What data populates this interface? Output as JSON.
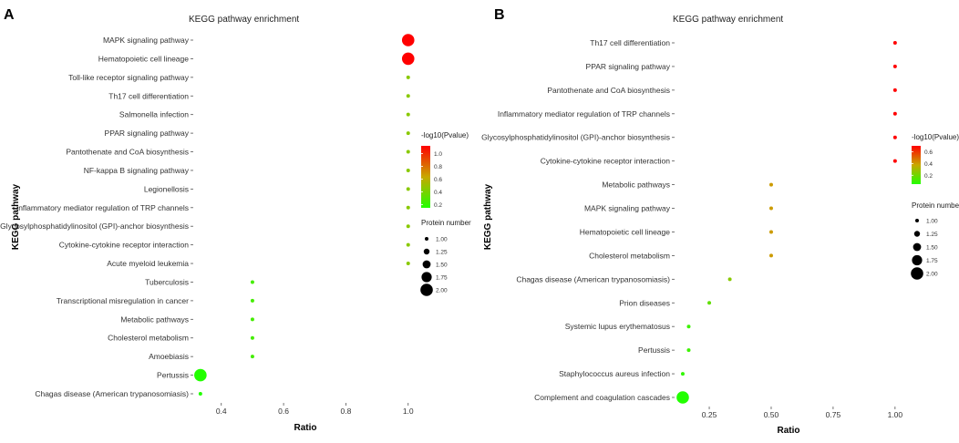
{
  "chart_data": [
    {
      "type": "scatter",
      "panel_label": "A",
      "title": "KEGG pathway enrichment",
      "xlabel": "Ratio",
      "ylabel": "KEGG pathway",
      "xlim": [
        0.31,
        1.03
      ],
      "xticks": [
        {
          "v": 0.4,
          "label": "0.4"
        },
        {
          "v": 0.6,
          "label": "0.6"
        },
        {
          "v": 0.8,
          "label": "0.8"
        },
        {
          "v": 1.0,
          "label": "1.0"
        }
      ],
      "color_legend": {
        "title": "-log10(Pvalue)",
        "min": 0.15,
        "max": 1.12,
        "ticks": [
          {
            "v": 1.0,
            "label": "1.0"
          },
          {
            "v": 0.8,
            "label": "0.8"
          },
          {
            "v": 0.6,
            "label": "0.6"
          },
          {
            "v": 0.4,
            "label": "0.4"
          },
          {
            "v": 0.2,
            "label": "0.2"
          }
        ]
      },
      "size_legend": {
        "title": "Protein number",
        "entries": [
          {
            "v": 1.0,
            "label": "1.00"
          },
          {
            "v": 1.25,
            "label": "1.25"
          },
          {
            "v": 1.5,
            "label": "1.50"
          },
          {
            "v": 1.75,
            "label": "1.75"
          },
          {
            "v": 2.0,
            "label": "2.00"
          }
        ]
      },
      "points": [
        {
          "pathway": "MAPK signaling pathway",
          "ratio": 1.0,
          "neglog10p": 1.12,
          "count": 2
        },
        {
          "pathway": "Hematopoietic cell lineage",
          "ratio": 1.0,
          "neglog10p": 1.12,
          "count": 2
        },
        {
          "pathway": "Toll-like receptor signaling pathway",
          "ratio": 1.0,
          "neglog10p": 0.45,
          "count": 1
        },
        {
          "pathway": "Th17 cell differentiation",
          "ratio": 1.0,
          "neglog10p": 0.45,
          "count": 1
        },
        {
          "pathway": "Salmonella infection",
          "ratio": 1.0,
          "neglog10p": 0.45,
          "count": 1
        },
        {
          "pathway": "PPAR signaling pathway",
          "ratio": 1.0,
          "neglog10p": 0.45,
          "count": 1
        },
        {
          "pathway": "Pantothenate and CoA biosynthesis",
          "ratio": 1.0,
          "neglog10p": 0.45,
          "count": 1
        },
        {
          "pathway": "NF-kappa B signaling pathway",
          "ratio": 1.0,
          "neglog10p": 0.45,
          "count": 1
        },
        {
          "pathway": "Legionellosis",
          "ratio": 1.0,
          "neglog10p": 0.45,
          "count": 1
        },
        {
          "pathway": "Inflammatory mediator regulation of TRP channels",
          "ratio": 1.0,
          "neglog10p": 0.45,
          "count": 1
        },
        {
          "pathway": "Glycosylphosphatidylinositol (GPI)-anchor biosynthesis",
          "ratio": 1.0,
          "neglog10p": 0.45,
          "count": 1
        },
        {
          "pathway": "Cytokine-cytokine receptor interaction",
          "ratio": 1.0,
          "neglog10p": 0.45,
          "count": 1
        },
        {
          "pathway": "Acute myeloid leukemia",
          "ratio": 1.0,
          "neglog10p": 0.45,
          "count": 1
        },
        {
          "pathway": "Tuberculosis",
          "ratio": 0.5,
          "neglog10p": 0.25,
          "count": 1
        },
        {
          "pathway": "Transcriptional misregulation in cancer",
          "ratio": 0.5,
          "neglog10p": 0.25,
          "count": 1
        },
        {
          "pathway": "Metabolic pathways",
          "ratio": 0.5,
          "neglog10p": 0.25,
          "count": 1
        },
        {
          "pathway": "Cholesterol metabolism",
          "ratio": 0.5,
          "neglog10p": 0.25,
          "count": 1
        },
        {
          "pathway": "Amoebiasis",
          "ratio": 0.5,
          "neglog10p": 0.25,
          "count": 1
        },
        {
          "pathway": "Pertussis",
          "ratio": 0.333,
          "neglog10p": 0.15,
          "count": 2
        },
        {
          "pathway": "Chagas disease (American trypanosomiasis)",
          "ratio": 0.333,
          "neglog10p": 0.15,
          "count": 1
        }
      ]
    },
    {
      "type": "scatter",
      "panel_label": "B",
      "title": "KEGG pathway enrichment",
      "xlabel": "Ratio",
      "ylabel": "KEGG pathway",
      "xlim": [
        0.11,
        1.03
      ],
      "xticks": [
        {
          "v": 0.25,
          "label": "0.25"
        },
        {
          "v": 0.5,
          "label": "0.50"
        },
        {
          "v": 0.75,
          "label": "0.75"
        },
        {
          "v": 1.0,
          "label": "1.00"
        }
      ],
      "color_legend": {
        "title": "-log10(Pvalue)",
        "min": 0.05,
        "max": 0.7,
        "ticks": [
          {
            "v": 0.6,
            "label": "0.6"
          },
          {
            "v": 0.4,
            "label": "0.4"
          },
          {
            "v": 0.2,
            "label": "0.2"
          }
        ]
      },
      "size_legend": {
        "title": "Protein number",
        "entries": [
          {
            "v": 1.0,
            "label": "1.00"
          },
          {
            "v": 1.25,
            "label": "1.25"
          },
          {
            "v": 1.5,
            "label": "1.50"
          },
          {
            "v": 1.75,
            "label": "1.75"
          },
          {
            "v": 2.0,
            "label": "2.00"
          }
        ]
      },
      "points": [
        {
          "pathway": "Th17 cell differentiation",
          "ratio": 1.0,
          "neglog10p": 0.7,
          "count": 1
        },
        {
          "pathway": "PPAR signaling pathway",
          "ratio": 1.0,
          "neglog10p": 0.7,
          "count": 1
        },
        {
          "pathway": "Pantothenate and CoA biosynthesis",
          "ratio": 1.0,
          "neglog10p": 0.7,
          "count": 1
        },
        {
          "pathway": "Inflammatory mediator regulation of TRP channels",
          "ratio": 1.0,
          "neglog10p": 0.7,
          "count": 1
        },
        {
          "pathway": "Glycosylphosphatidylinositol (GPI)-anchor biosynthesis",
          "ratio": 1.0,
          "neglog10p": 0.7,
          "count": 1
        },
        {
          "pathway": "Cytokine-cytokine receptor interaction",
          "ratio": 1.0,
          "neglog10p": 0.7,
          "count": 1
        },
        {
          "pathway": "Metabolic pathways",
          "ratio": 0.5,
          "neglog10p": 0.4,
          "count": 1
        },
        {
          "pathway": "MAPK signaling pathway",
          "ratio": 0.5,
          "neglog10p": 0.4,
          "count": 1
        },
        {
          "pathway": "Hematopoietic cell lineage",
          "ratio": 0.5,
          "neglog10p": 0.4,
          "count": 1
        },
        {
          "pathway": "Cholesterol metabolism",
          "ratio": 0.5,
          "neglog10p": 0.4,
          "count": 1
        },
        {
          "pathway": "Chagas disease (American trypanosomiasis)",
          "ratio": 0.333,
          "neglog10p": 0.25,
          "count": 1
        },
        {
          "pathway": "Prion diseases",
          "ratio": 0.25,
          "neglog10p": 0.17,
          "count": 1
        },
        {
          "pathway": "Systemic lupus erythematosus",
          "ratio": 0.167,
          "neglog10p": 0.1,
          "count": 1
        },
        {
          "pathway": "Pertussis",
          "ratio": 0.167,
          "neglog10p": 0.1,
          "count": 1
        },
        {
          "pathway": "Staphylococcus aureus infection",
          "ratio": 0.143,
          "neglog10p": 0.08,
          "count": 1
        },
        {
          "pathway": "Complement and coagulation cascades",
          "ratio": 0.143,
          "neglog10p": 0.05,
          "count": 2
        }
      ]
    }
  ]
}
